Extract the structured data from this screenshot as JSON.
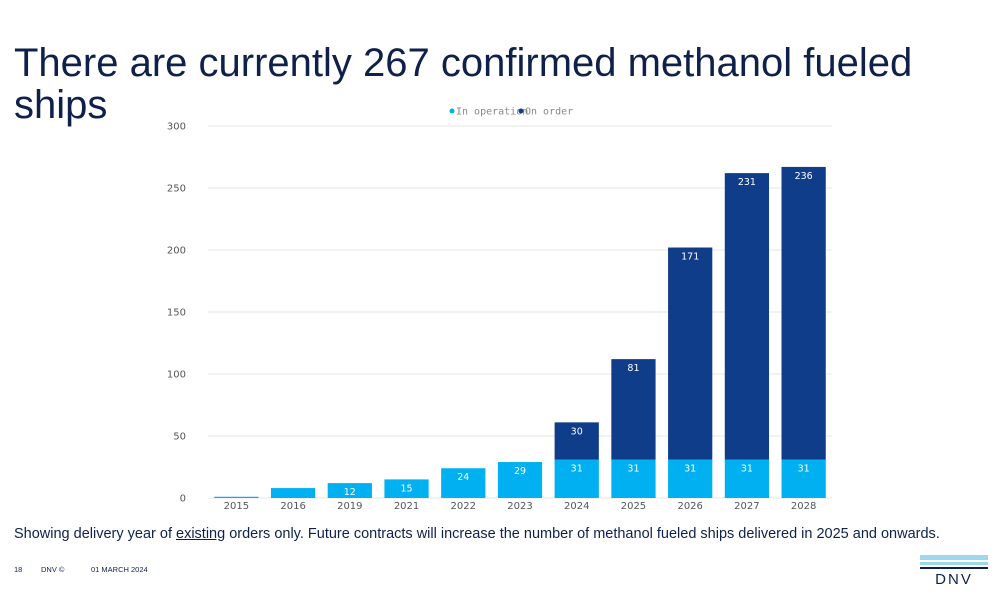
{
  "slide": {
    "title": "There are currently 267 confirmed methanol fueled ships",
    "note_prefix": "Showing delivery year of ",
    "note_underlined": "existing",
    "note_suffix": " orders only. Future contracts will increase the number of methanol fueled ships delivered in 2025 and onwards.",
    "page_number": "18",
    "copyright": "DNV ©",
    "date": "01 MARCH 2024",
    "logo_text": "DNV"
  },
  "colors": {
    "in_operation": "#00b0f0",
    "on_order": "#0f3d8a",
    "title": "#0f204b",
    "gridline": "#e6e6e6",
    "logo_bar_light": "#9fd8ee",
    "logo_bar_dark": "#0f204b"
  },
  "chart_data": {
    "type": "bar",
    "stacked": true,
    "title": "",
    "xlabel": "",
    "ylabel": "",
    "ylim": [
      0,
      300
    ],
    "yticks": [
      0,
      50,
      100,
      150,
      200,
      250,
      300
    ],
    "grid": true,
    "legend_position": "top-center",
    "categories": [
      "2015",
      "2016",
      "2019",
      "2021",
      "2022",
      "2023",
      "2024",
      "2025",
      "2026",
      "2027",
      "2028"
    ],
    "series": [
      {
        "name": "In operation",
        "values": [
          1,
          8,
          12,
          15,
          24,
          29,
          31,
          31,
          31,
          31,
          31
        ],
        "labels": [
          "",
          "",
          "12",
          "15",
          "24",
          "29",
          "31",
          "31",
          "31",
          "31",
          "31"
        ]
      },
      {
        "name": "On order",
        "values": [
          0,
          0,
          0,
          0,
          0,
          0,
          30,
          81,
          171,
          231,
          236
        ],
        "labels": [
          "",
          "",
          "",
          "",
          "",
          "",
          "30",
          "81",
          "171",
          "231",
          "236"
        ]
      }
    ]
  }
}
